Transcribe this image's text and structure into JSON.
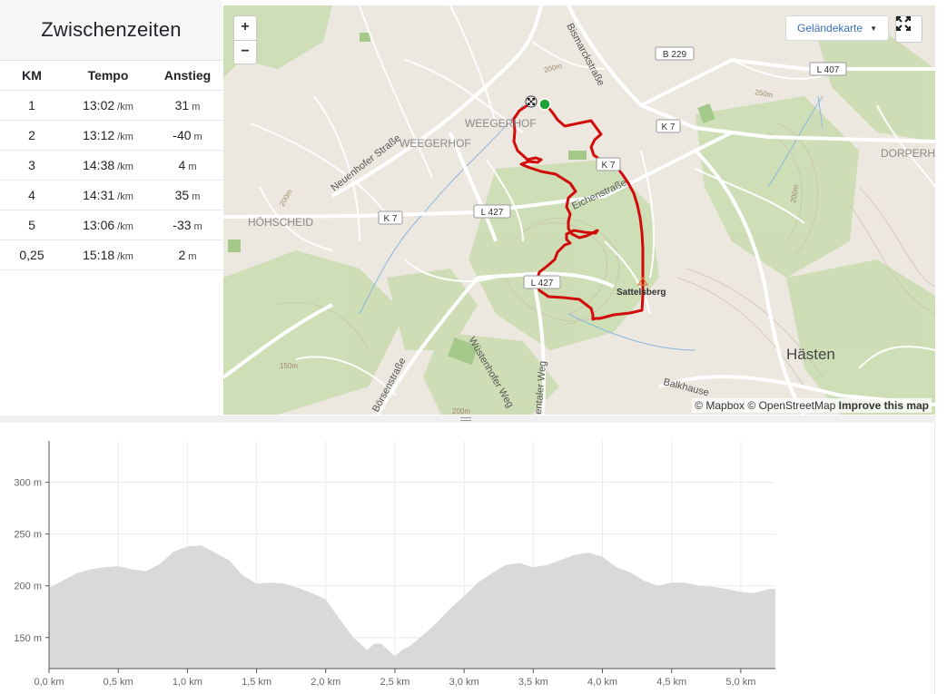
{
  "splits": {
    "title": "Zwischenzeiten",
    "headers": {
      "km": "KM",
      "pace": "Tempo",
      "elev": "Anstieg"
    },
    "rows": [
      {
        "km": "1",
        "pace": "13:02",
        "pace_unit": "/km",
        "elev": "31",
        "elev_unit": "m"
      },
      {
        "km": "2",
        "pace": "13:12",
        "pace_unit": "/km",
        "elev": "-40",
        "elev_unit": "m"
      },
      {
        "km": "3",
        "pace": "14:38",
        "pace_unit": "/km",
        "elev": "4",
        "elev_unit": "m"
      },
      {
        "km": "4",
        "pace": "14:31",
        "pace_unit": "/km",
        "elev": "35",
        "elev_unit": "m"
      },
      {
        "km": "5",
        "pace": "13:06",
        "pace_unit": "/km",
        "elev": "-33",
        "elev_unit": "m"
      },
      {
        "km": "0,25",
        "pace": "15:18",
        "pace_unit": "/km",
        "elev": "2",
        "elev_unit": "m"
      }
    ]
  },
  "map": {
    "zoom_in": "+",
    "zoom_out": "−",
    "map_type": "Geländekarte",
    "attribution": {
      "mapbox": "© Mapbox",
      "osm": "© OpenStreetMap",
      "improve": "Improve this map"
    },
    "labels": {
      "bismarck": "Bismarckstraße",
      "neuenhofer": "Neuenhofer Straße",
      "eichen": "Eichenstraße",
      "weegerhof1": "WEEGERHOF",
      "weegerhof2": "WEEGERHOF",
      "hoehscheid": "HÖHSCHEID",
      "dorperhof": "DORPERH",
      "wuestenhofer": "Wüstenhofer Weg",
      "boersen": "Börsenstraße",
      "entaler": "entaler Weg",
      "balkhaus": "Balkhause",
      "haesten": "Hästen",
      "sattelsberg": "Sattelsberg",
      "b229": "B 229",
      "l407": "L 407",
      "k7a": "K 7",
      "k7b": "K 7",
      "k7c": "K 7",
      "l427a": "L 427",
      "l427b": "L 427",
      "c200a": "200m",
      "c200b": "200m",
      "c200c": "200m",
      "c200d": "200m",
      "c250": "250m",
      "c150": "150m"
    },
    "colors": {
      "route": "#d10a0a",
      "start": "#1aa339"
    }
  },
  "elevation": {
    "y_ticks": [
      "300 m",
      "250 m",
      "200 m",
      "150 m"
    ],
    "x_ticks": [
      "0,0 km",
      "0,5 km",
      "1,0 km",
      "1,5 km",
      "2,0 km",
      "2,5 km",
      "3,0 km",
      "3,5 km",
      "4,0 km",
      "4,5 km",
      "5,0 km"
    ]
  },
  "chart_data": {
    "type": "area",
    "title": "",
    "xlabel": "",
    "ylabel": "",
    "xlim": [
      0,
      5.25
    ],
    "ylim": [
      120,
      340
    ],
    "grid": true,
    "color": "#d9d9d9",
    "x": [
      0,
      0.1,
      0.2,
      0.3,
      0.4,
      0.5,
      0.6,
      0.7,
      0.8,
      0.9,
      1.0,
      1.1,
      1.2,
      1.3,
      1.4,
      1.5,
      1.6,
      1.7,
      1.8,
      1.9,
      2.0,
      2.1,
      2.2,
      2.3,
      2.35,
      2.4,
      2.45,
      2.5,
      2.55,
      2.6,
      2.7,
      2.8,
      2.9,
      3.0,
      3.1,
      3.2,
      3.3,
      3.4,
      3.5,
      3.6,
      3.7,
      3.8,
      3.9,
      4.0,
      4.1,
      4.2,
      4.3,
      4.4,
      4.5,
      4.6,
      4.7,
      4.8,
      4.9,
      5.0,
      5.1,
      5.2,
      5.25
    ],
    "y": [
      198,
      205,
      212,
      216,
      218,
      219,
      216,
      214,
      221,
      233,
      238,
      239,
      232,
      225,
      210,
      202,
      203,
      202,
      198,
      193,
      187,
      168,
      150,
      138,
      144,
      144,
      138,
      132,
      138,
      141,
      152,
      164,
      178,
      190,
      203,
      212,
      220,
      222,
      218,
      220,
      225,
      230,
      232,
      228,
      218,
      213,
      205,
      200,
      203,
      203,
      200,
      199,
      197,
      194,
      193,
      197,
      197
    ]
  }
}
